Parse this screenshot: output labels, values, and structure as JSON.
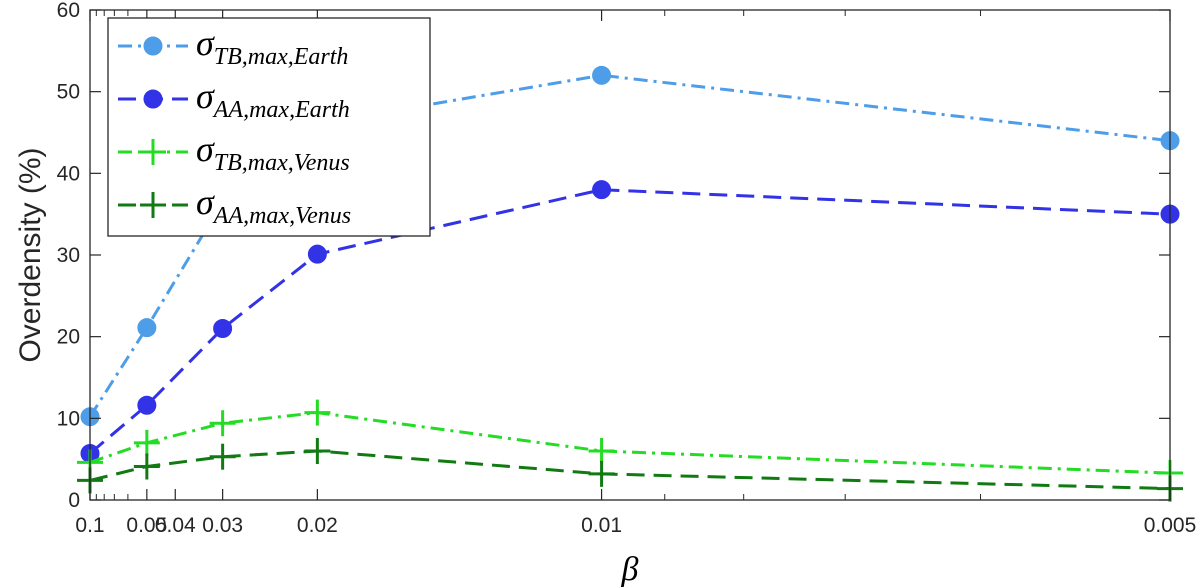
{
  "chart_data": {
    "type": "line",
    "x_scale": "reciprocal",
    "xlabel": "β",
    "ylabel": "Overdensity (%)",
    "x": [
      0.1,
      0.05,
      0.03,
      0.02,
      0.01,
      0.005
    ],
    "xticks": [
      0.1,
      0.05,
      0.04,
      0.03,
      0.02,
      0.01,
      0.005
    ],
    "xtick_labels": [
      "0.1",
      "0.05",
      "0.04",
      "0.03",
      "0.02",
      "0.01",
      "0.005"
    ],
    "xlim": [
      0.1,
      0.005
    ],
    "ylim": [
      0,
      60
    ],
    "yticks": [
      0,
      10,
      20,
      30,
      40,
      50,
      60
    ],
    "grid": false,
    "legend_position": "top-left",
    "series": [
      {
        "key": "tb-earth",
        "legend": {
          "sigma": "σ",
          "sub": "TB,max,Earth"
        },
        "values": [
          10.2,
          21.1,
          36.5,
          46.1,
          52.0,
          44.0
        ],
        "color": "#4d9de8",
        "dash": "dashdot",
        "marker": "circle"
      },
      {
        "key": "aa-earth",
        "legend": {
          "sigma": "σ",
          "sub": "AA,max,Earth"
        },
        "values": [
          5.7,
          11.6,
          21.0,
          30.1,
          38.0,
          35.0
        ],
        "color": "#3232e6",
        "dash": "dash",
        "marker": "circle"
      },
      {
        "key": "tb-venus",
        "legend": {
          "sigma": "σ",
          "sub": "TB,max,Venus"
        },
        "values": [
          4.6,
          7.0,
          9.4,
          10.7,
          6.0,
          3.3
        ],
        "color": "#23dc23",
        "dash": "dashdot",
        "marker": "plus"
      },
      {
        "key": "aa-venus",
        "legend": {
          "sigma": "σ",
          "sub": "AA,max,Venus"
        },
        "values": [
          2.4,
          4.1,
          5.3,
          6.0,
          3.2,
          1.4
        ],
        "color": "#127a12",
        "dash": "dash",
        "marker": "plus"
      }
    ]
  }
}
